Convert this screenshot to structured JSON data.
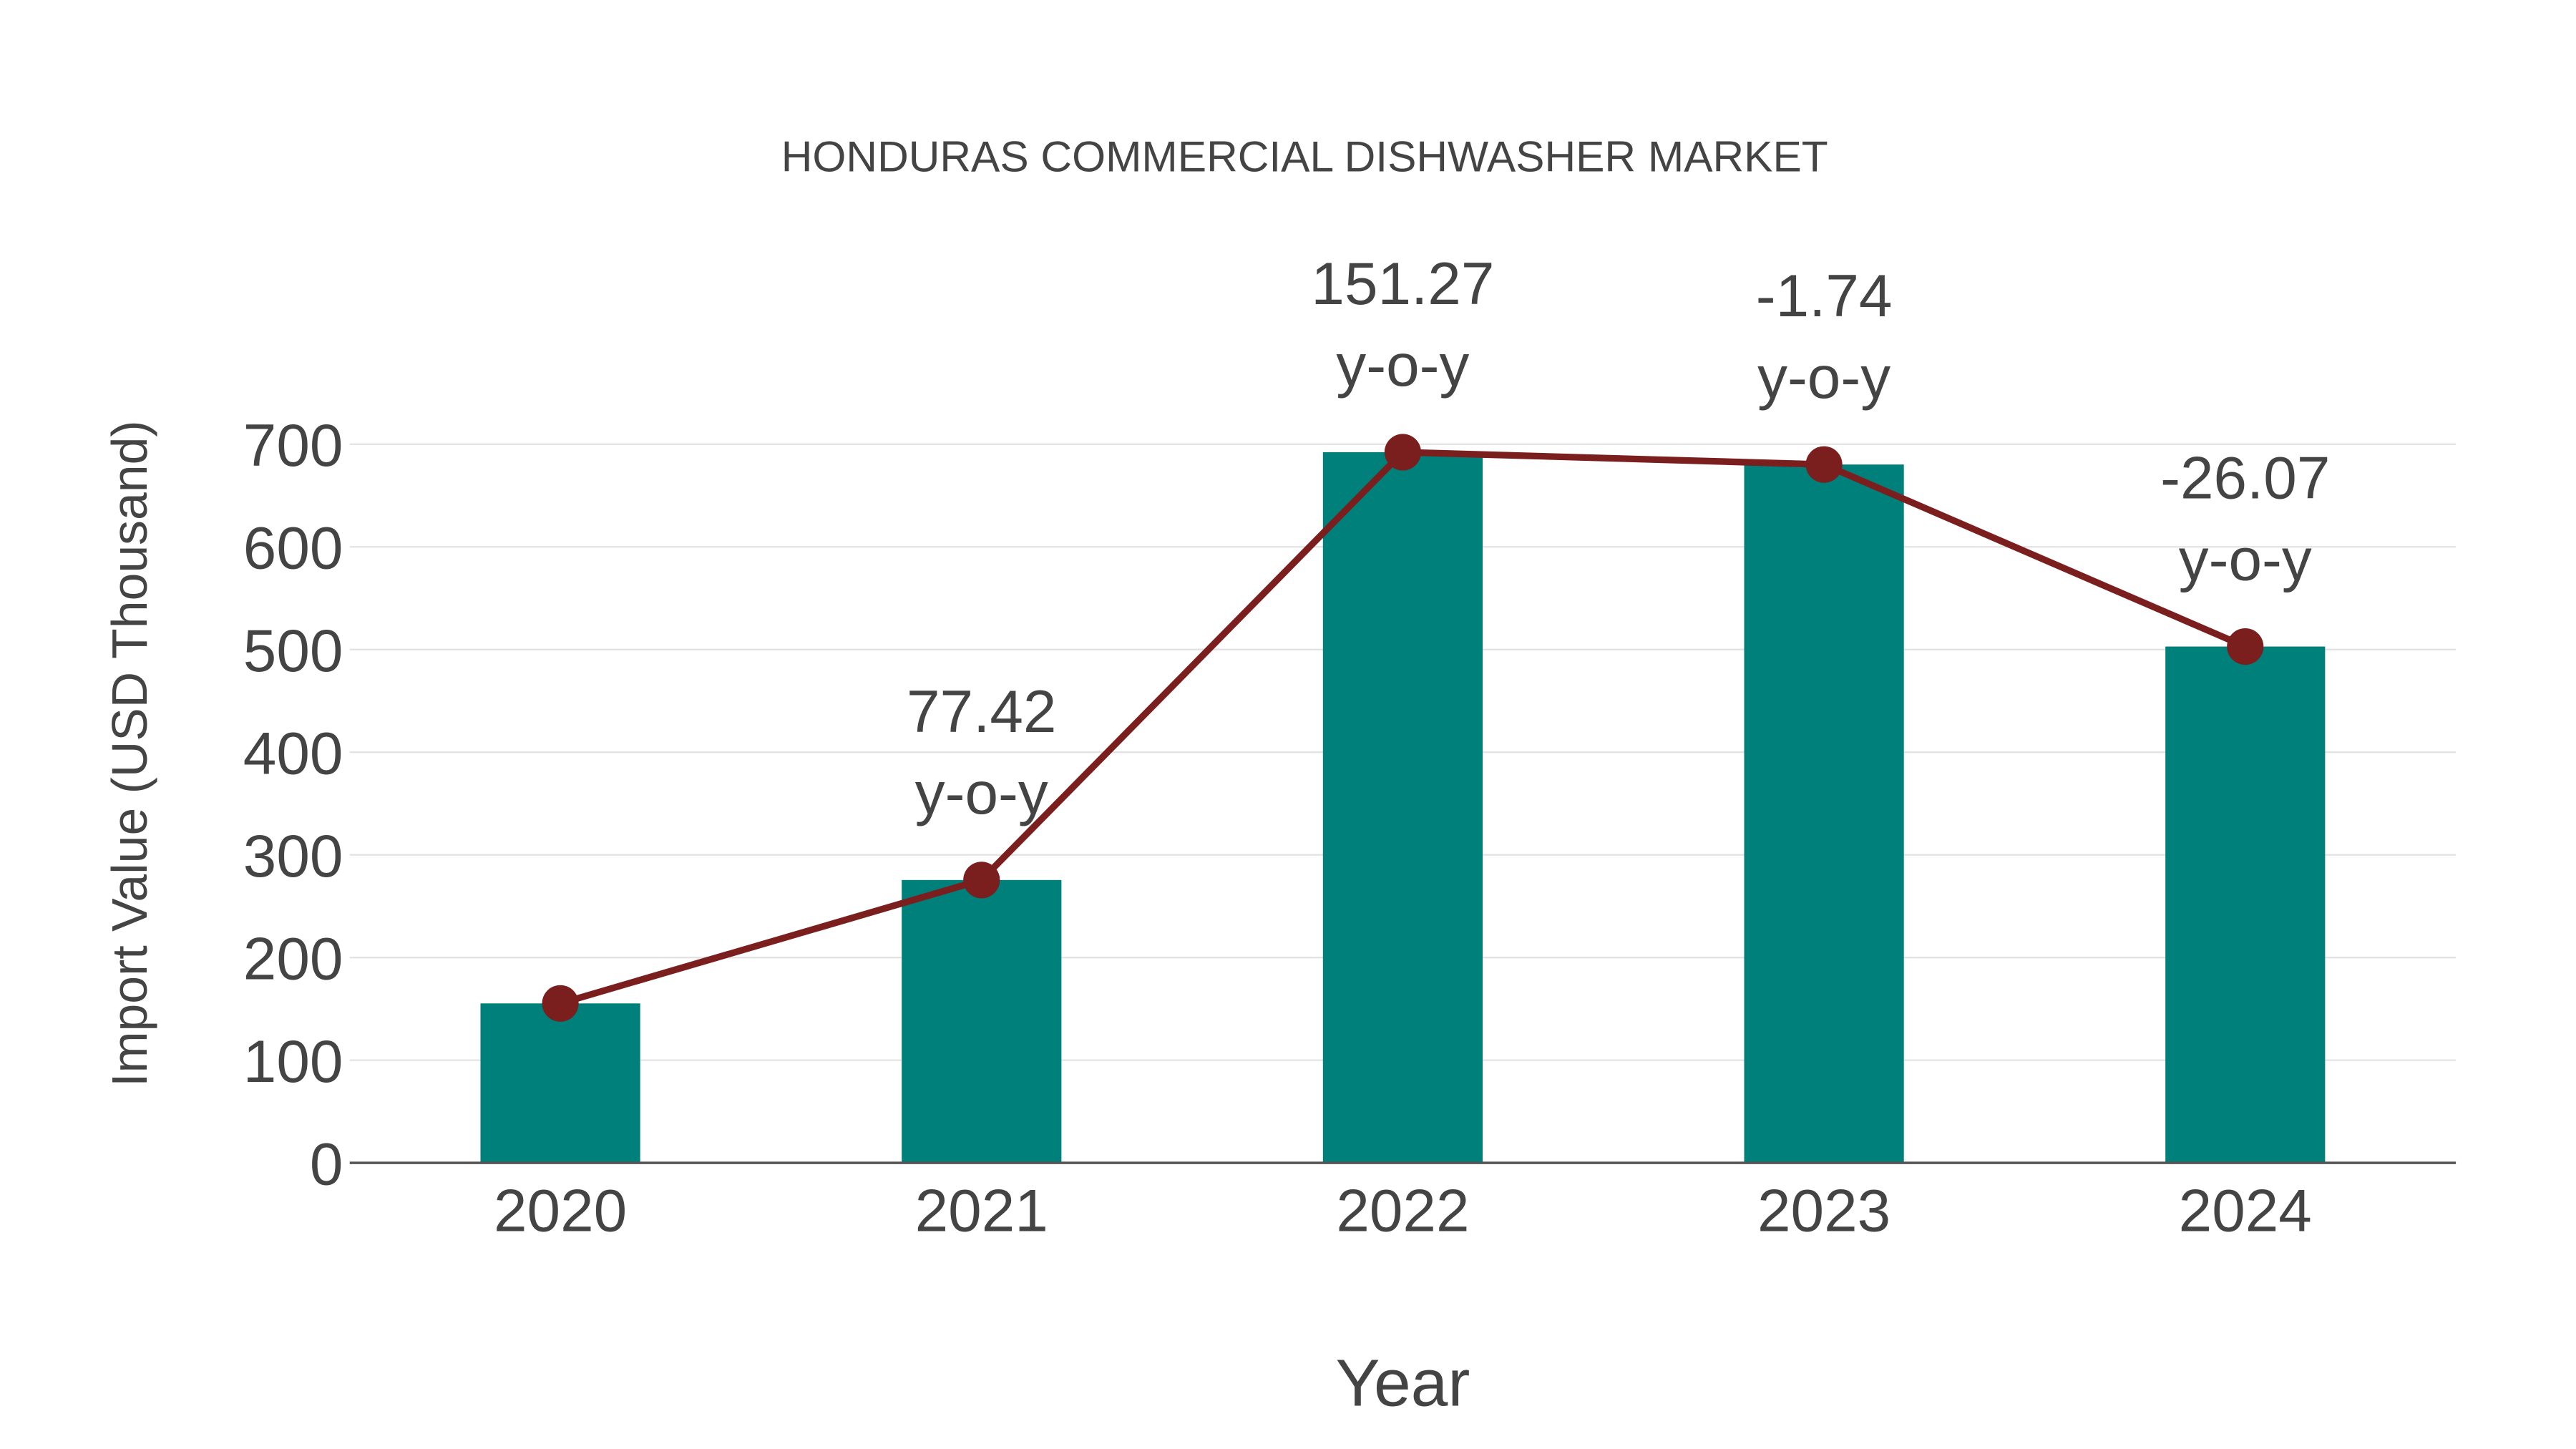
{
  "chart_data": {
    "type": "bar+line",
    "title": "HONDURAS COMMERCIAL DISHWASHER MARKET",
    "xlabel": "Year",
    "ylabel": "Import Value (USD Thousand)",
    "ylim": [
      0,
      700
    ],
    "yticks": [
      0,
      100,
      200,
      300,
      400,
      500,
      600,
      700
    ],
    "categories": [
      "2020",
      "2021",
      "2022",
      "2023",
      "2024"
    ],
    "values": [
      155.3,
      275.5,
      692.2,
      680.2,
      502.9
    ],
    "yoy_annotations": [
      null,
      "77.42",
      "151.27",
      "-1.74",
      "-26.07"
    ],
    "yoy_suffix": "y-o-y",
    "grid": true,
    "colors": {
      "bar": "#00807B",
      "line": "#7B1E1E"
    }
  }
}
